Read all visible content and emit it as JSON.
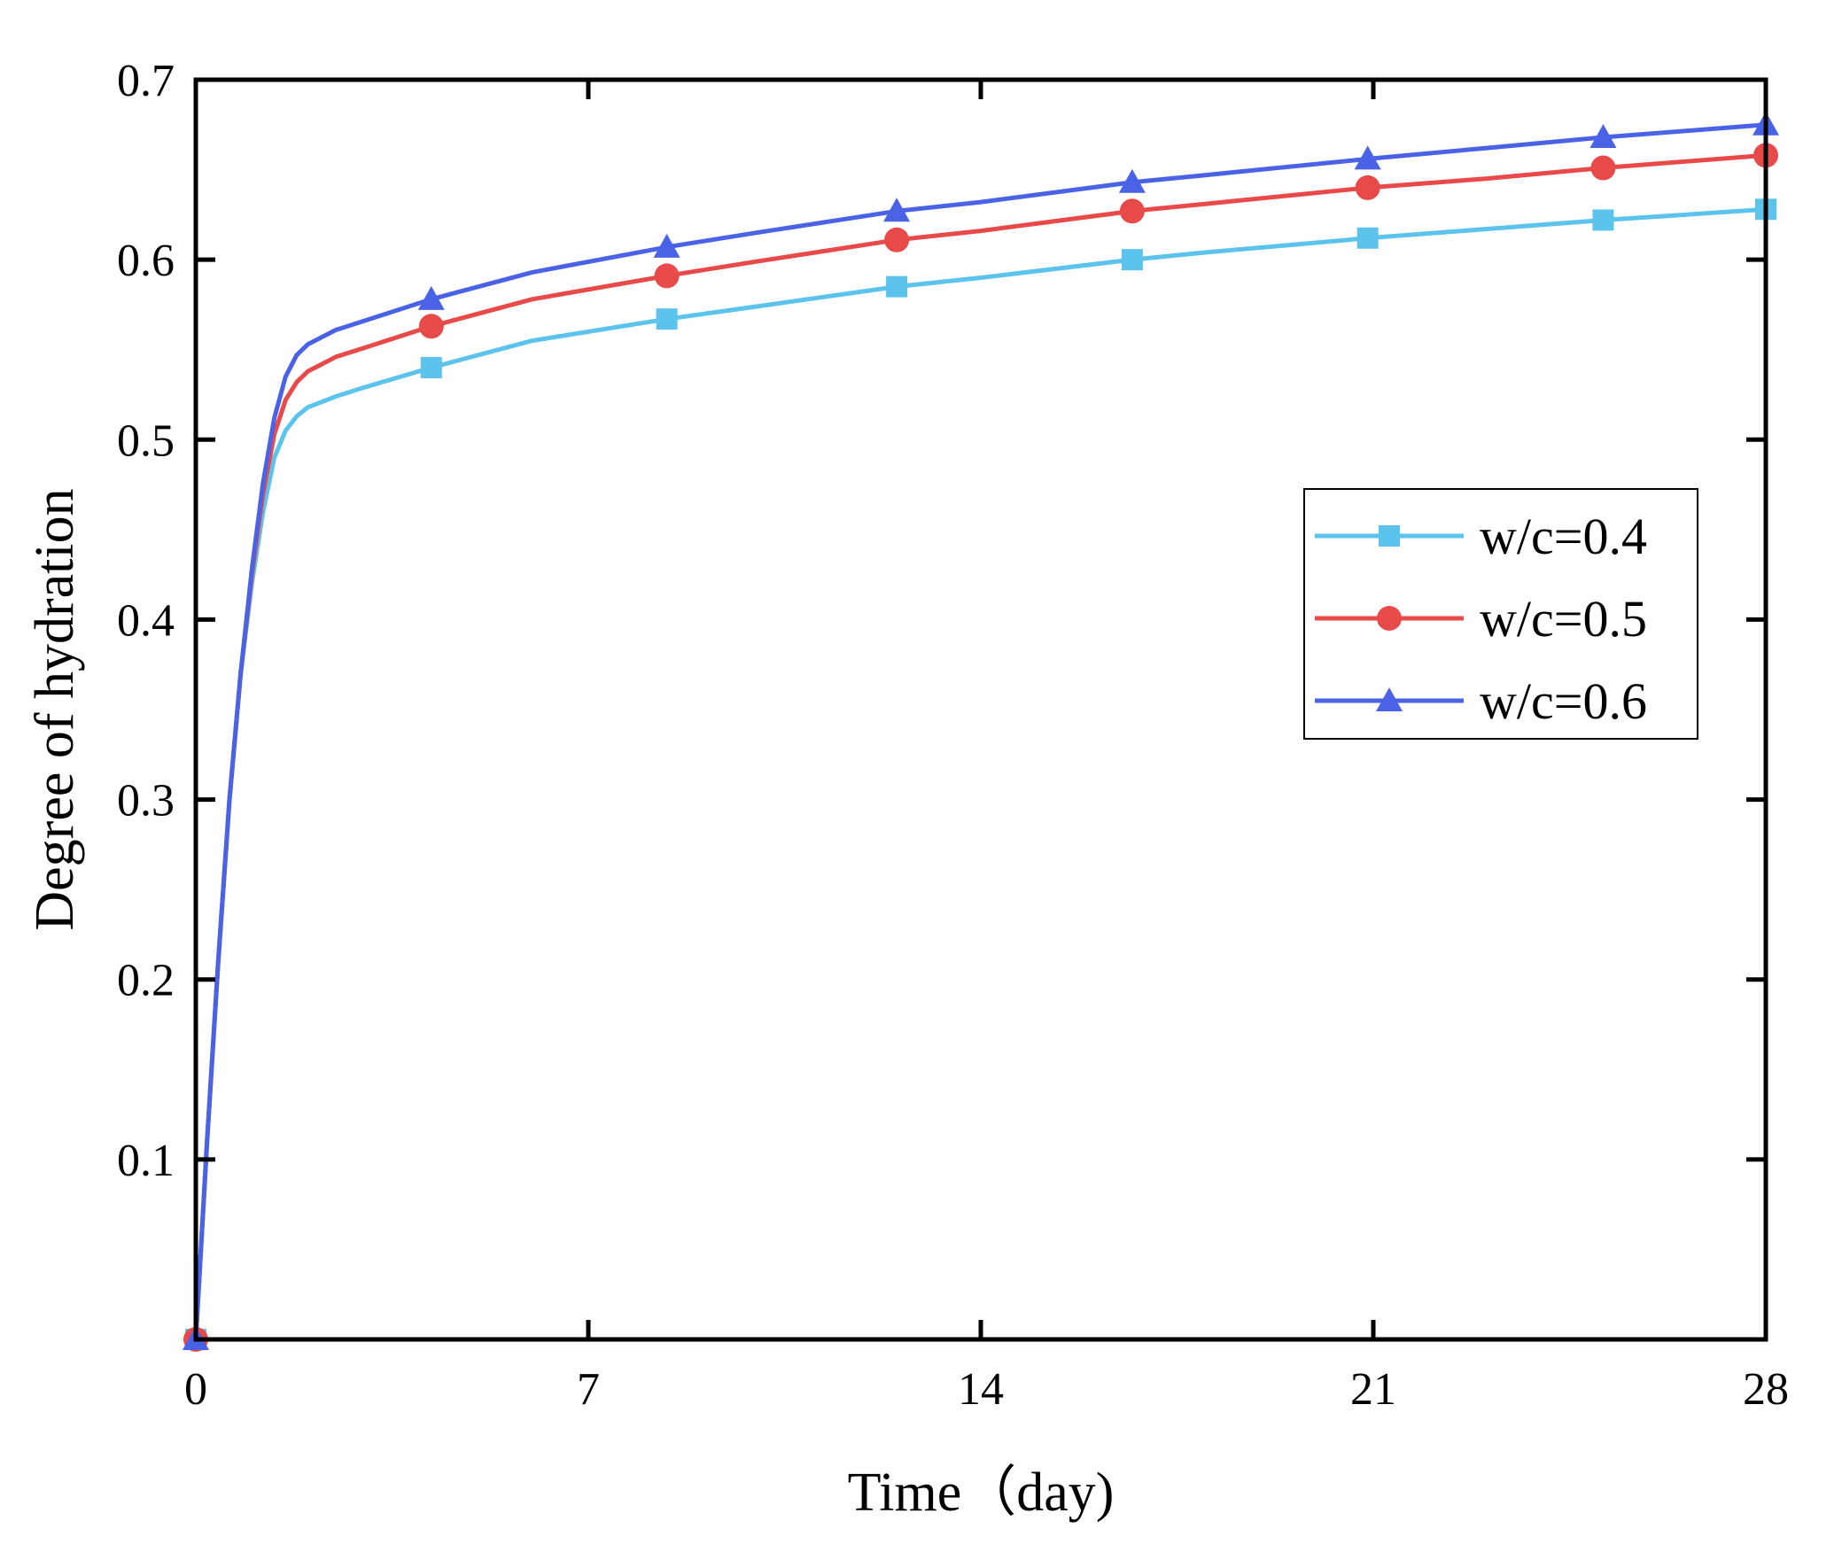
{
  "chart_data": {
    "type": "line",
    "title": "",
    "xlabel": "Time（day)",
    "ylabel": "Degree of hydration",
    "xlim": [
      0,
      28
    ],
    "ylim": [
      0,
      0.7
    ],
    "xticks": [
      0,
      7,
      14,
      21,
      28
    ],
    "xtick_labels": [
      "0",
      "7",
      "14",
      "21",
      "28"
    ],
    "yticks": [
      0.1,
      0.2,
      0.3,
      0.4,
      0.5,
      0.6,
      0.7
    ],
    "ytick_labels": [
      "0.1",
      "0.2",
      "0.3",
      "0.4",
      "0.5",
      "0.6",
      "0.7"
    ],
    "grid": false,
    "legend_position": "right",
    "series": [
      {
        "name": "w/c=0.4",
        "color": "#5cc3ec",
        "marker": "square",
        "curve_x": [
          0,
          0.2,
          0.4,
          0.6,
          0.8,
          1.0,
          1.2,
          1.4,
          1.6,
          1.8,
          2.0,
          2.5,
          3.0,
          4.2,
          6,
          8.4,
          10,
          12.5,
          14,
          16.7,
          18,
          20.9,
          23,
          25.1,
          28
        ],
        "curve_y": [
          0,
          0.11,
          0.21,
          0.3,
          0.37,
          0.42,
          0.46,
          0.49,
          0.505,
          0.513,
          0.518,
          0.524,
          0.529,
          0.54,
          0.555,
          0.567,
          0.574,
          0.585,
          0.59,
          0.6,
          0.604,
          0.612,
          0.617,
          0.622,
          0.628
        ],
        "marker_x": [
          0,
          4.2,
          8.4,
          12.5,
          16.7,
          20.9,
          25.1,
          28
        ],
        "marker_y": [
          0,
          0.54,
          0.567,
          0.585,
          0.6,
          0.612,
          0.622,
          0.628
        ]
      },
      {
        "name": "w/c=0.5",
        "color": "#e84a4a",
        "marker": "circle",
        "curve_x": [
          0,
          0.2,
          0.4,
          0.6,
          0.8,
          1.0,
          1.2,
          1.4,
          1.6,
          1.8,
          2.0,
          2.5,
          3.0,
          4.2,
          6,
          8.4,
          10,
          12.5,
          14,
          16.7,
          18,
          20.9,
          23,
          25.1,
          28
        ],
        "curve_y": [
          0,
          0.11,
          0.21,
          0.3,
          0.37,
          0.425,
          0.47,
          0.503,
          0.522,
          0.532,
          0.538,
          0.546,
          0.551,
          0.563,
          0.578,
          0.591,
          0.599,
          0.611,
          0.616,
          0.627,
          0.631,
          0.64,
          0.645,
          0.651,
          0.658
        ],
        "marker_x": [
          0,
          4.2,
          8.4,
          12.5,
          16.7,
          20.9,
          25.1,
          28
        ],
        "marker_y": [
          0,
          0.563,
          0.591,
          0.611,
          0.627,
          0.64,
          0.651,
          0.658
        ]
      },
      {
        "name": "w/c=0.6",
        "color": "#4a63e6",
        "marker": "triangle",
        "curve_x": [
          0,
          0.2,
          0.4,
          0.6,
          0.8,
          1.0,
          1.2,
          1.4,
          1.6,
          1.8,
          2.0,
          2.5,
          3.0,
          4.2,
          6,
          8.4,
          10,
          12.5,
          14,
          16.7,
          18,
          20.9,
          23,
          25.1,
          28
        ],
        "curve_y": [
          0,
          0.11,
          0.21,
          0.3,
          0.37,
          0.428,
          0.476,
          0.512,
          0.535,
          0.547,
          0.553,
          0.561,
          0.566,
          0.578,
          0.593,
          0.607,
          0.615,
          0.627,
          0.632,
          0.643,
          0.647,
          0.656,
          0.662,
          0.668,
          0.675
        ],
        "marker_x": [
          0,
          4.2,
          8.4,
          12.5,
          16.7,
          20.9,
          25.1,
          28
        ],
        "marker_y": [
          0,
          0.578,
          0.607,
          0.627,
          0.643,
          0.656,
          0.668,
          0.675
        ]
      }
    ]
  }
}
